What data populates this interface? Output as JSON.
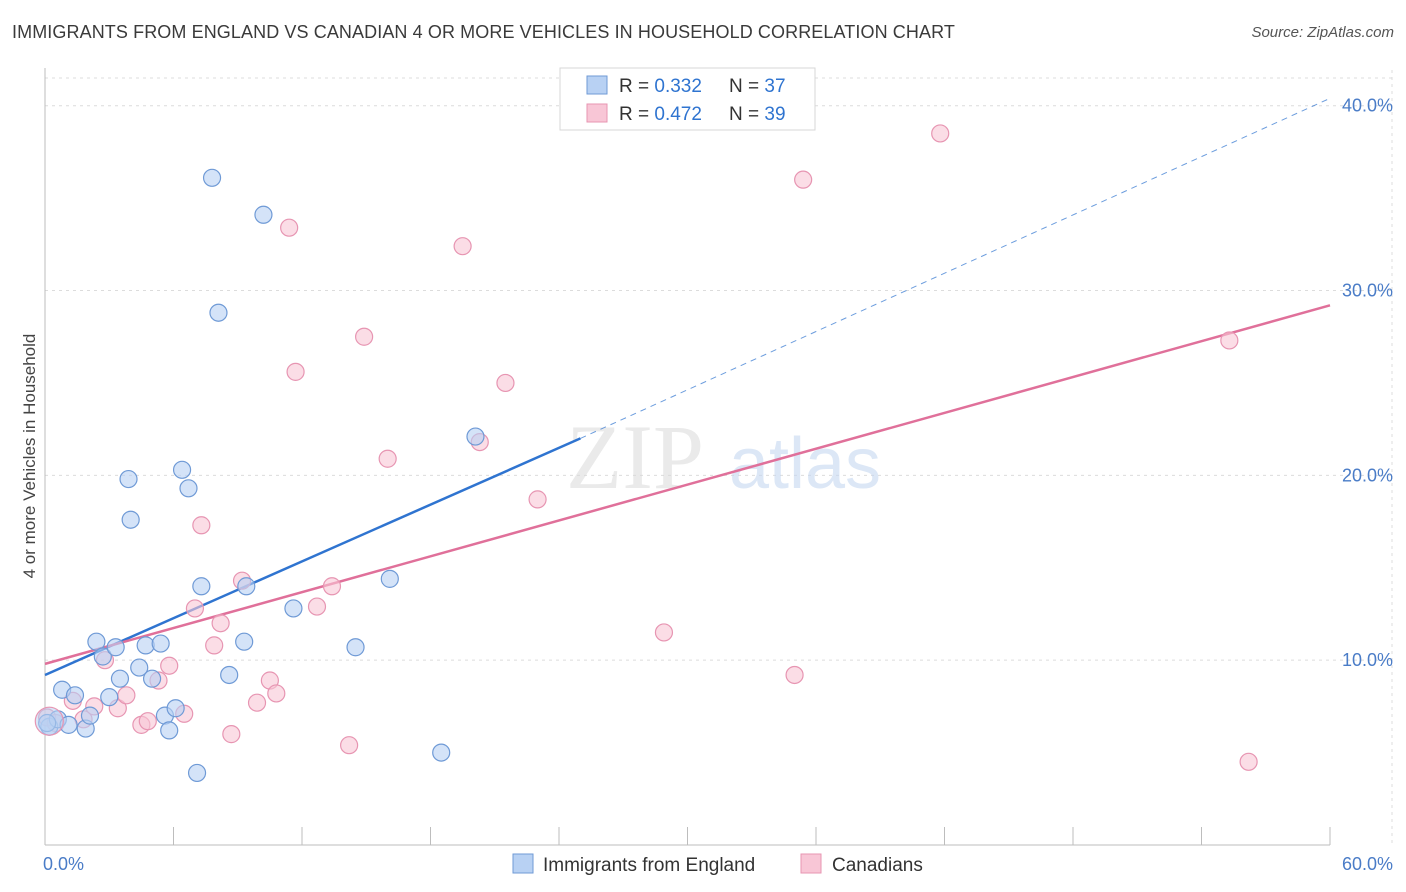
{
  "title": "IMMIGRANTS FROM ENGLAND VS CANADIAN 4 OR MORE VEHICLES IN HOUSEHOLD CORRELATION CHART",
  "source": "Source: ZipAtlas.com",
  "watermark": {
    "zip": "ZIP",
    "atlas": "atlas"
  },
  "colors": {
    "blue_fill": "#b8d1f3",
    "blue_stroke": "#6f9ad6",
    "blue_line": "#2f74d0",
    "pink_fill": "#f8c6d6",
    "pink_stroke": "#e795b2",
    "pink_line": "#e0709a",
    "tick_label": "#4a7cc7",
    "grid": "#dcdcdc"
  },
  "legend": {
    "rows": [
      {
        "r_label": "R = ",
        "r_value": "0.332",
        "n_label": "N = ",
        "n_value": "37"
      },
      {
        "r_label": "R = ",
        "r_value": "0.472",
        "n_label": "N = ",
        "n_value": "39"
      }
    ]
  },
  "chart_data": {
    "type": "scatter",
    "title": "IMMIGRANTS FROM ENGLAND VS CANADIAN 4 OR MORE VEHICLES IN HOUSEHOLD CORRELATION CHART",
    "xlabel": "",
    "ylabel": "4 or more Vehicles in Household",
    "xlim": [
      0,
      60
    ],
    "ylim": [
      0,
      41.5
    ],
    "x_tick_labels": [
      "0.0%",
      "60.0%"
    ],
    "y_ticks": [
      10,
      20,
      30,
      40
    ],
    "y_tick_labels": [
      "10.0%",
      "20.0%",
      "30.0%",
      "40.0%"
    ],
    "grid": true,
    "legend_position": "top-center",
    "series": [
      {
        "name": "Immigrants from England",
        "r": 0.332,
        "n": 37,
        "trend": {
          "x0": 0,
          "y0": 9.2,
          "x1": 25,
          "y1": 22.0,
          "extend_to_x": 60,
          "extend_to_y": 40.4
        },
        "points": [
          [
            0.2,
            6.4
          ],
          [
            0.6,
            6.8
          ],
          [
            0.8,
            8.4
          ],
          [
            1.1,
            6.5
          ],
          [
            1.4,
            8.1
          ],
          [
            1.9,
            6.3
          ],
          [
            2.1,
            7.0
          ],
          [
            2.4,
            11.0
          ],
          [
            2.7,
            10.2
          ],
          [
            3.0,
            8.0
          ],
          [
            3.3,
            10.7
          ],
          [
            3.5,
            9.0
          ],
          [
            3.9,
            19.8
          ],
          [
            4.0,
            17.6
          ],
          [
            4.4,
            9.6
          ],
          [
            4.7,
            10.8
          ],
          [
            5.0,
            9.0
          ],
          [
            5.4,
            10.9
          ],
          [
            5.6,
            7.0
          ],
          [
            5.8,
            6.2
          ],
          [
            6.1,
            7.4
          ],
          [
            6.4,
            20.3
          ],
          [
            6.7,
            19.3
          ],
          [
            7.1,
            3.9
          ],
          [
            7.3,
            14.0
          ],
          [
            7.8,
            36.1
          ],
          [
            8.1,
            28.8
          ],
          [
            8.6,
            9.2
          ],
          [
            9.3,
            11.0
          ],
          [
            9.4,
            14.0
          ],
          [
            10.2,
            34.1
          ],
          [
            11.6,
            12.8
          ],
          [
            14.5,
            10.7
          ],
          [
            16.1,
            14.4
          ],
          [
            18.5,
            5.0
          ],
          [
            20.1,
            22.1
          ],
          [
            0.1,
            6.6
          ]
        ]
      },
      {
        "name": "Canadians",
        "r": 0.472,
        "n": 39,
        "trend": {
          "x0": 0,
          "y0": 9.8,
          "x1": 60,
          "y1": 29.2
        },
        "points": [
          [
            0.1,
            6.9
          ],
          [
            0.5,
            6.6
          ],
          [
            1.3,
            7.8
          ],
          [
            1.8,
            6.8
          ],
          [
            2.3,
            7.5
          ],
          [
            2.8,
            10.0
          ],
          [
            3.4,
            7.4
          ],
          [
            3.8,
            8.1
          ],
          [
            4.5,
            6.5
          ],
          [
            4.8,
            6.7
          ],
          [
            5.3,
            8.9
          ],
          [
            5.8,
            9.7
          ],
          [
            6.5,
            7.1
          ],
          [
            7.0,
            12.8
          ],
          [
            7.3,
            17.3
          ],
          [
            7.9,
            10.8
          ],
          [
            8.2,
            12.0
          ],
          [
            8.7,
            6.0
          ],
          [
            9.2,
            14.3
          ],
          [
            9.9,
            7.7
          ],
          [
            10.5,
            8.9
          ],
          [
            10.8,
            8.2
          ],
          [
            11.4,
            33.4
          ],
          [
            11.7,
            25.6
          ],
          [
            12.7,
            12.9
          ],
          [
            13.4,
            14.0
          ],
          [
            14.2,
            5.4
          ],
          [
            14.9,
            27.5
          ],
          [
            16.0,
            20.9
          ],
          [
            19.5,
            32.4
          ],
          [
            20.3,
            21.8
          ],
          [
            21.5,
            25.0
          ],
          [
            23.0,
            18.7
          ],
          [
            28.9,
            11.5
          ],
          [
            35.0,
            9.2
          ],
          [
            35.4,
            36.0
          ],
          [
            41.8,
            38.5
          ],
          [
            55.3,
            27.3
          ],
          [
            56.2,
            4.5
          ]
        ]
      }
    ]
  }
}
